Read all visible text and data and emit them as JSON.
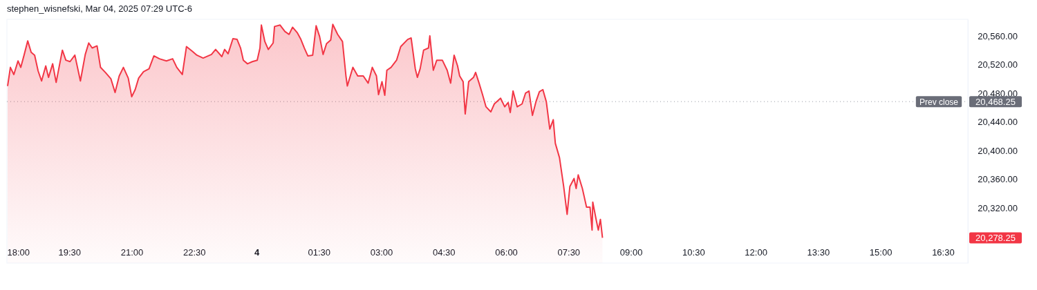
{
  "chart_data": {
    "type": "area",
    "title": "stephen_wisnefski, Mar 04, 2025 07:29 UTC-6",
    "x": [
      "2025-03-03T18:01",
      "2025-03-03T18:05",
      "2025-03-03T18:10",
      "2025-03-03T18:16",
      "2025-03-03T18:20",
      "2025-03-03T18:25",
      "2025-03-03T18:30",
      "2025-03-03T18:35",
      "2025-03-03T18:40",
      "2025-03-03T18:45",
      "2025-03-03T18:50",
      "2025-03-03T18:56",
      "2025-03-03T19:00",
      "2025-03-03T19:06",
      "2025-03-03T19:11",
      "2025-03-03T19:20",
      "2025-03-03T19:25",
      "2025-03-03T19:31",
      "2025-03-03T19:38",
      "2025-03-03T19:46",
      "2025-03-03T19:53",
      "2025-03-03T19:58",
      "2025-03-03T20:03",
      "2025-03-03T20:10",
      "2025-03-03T20:15",
      "2025-03-03T20:22",
      "2025-03-03T20:30",
      "2025-03-03T20:36",
      "2025-03-03T20:42",
      "2025-03-03T20:48",
      "2025-03-03T20:55",
      "2025-03-03T21:00",
      "2025-03-03T21:05",
      "2025-03-03T21:10",
      "2025-03-03T21:17",
      "2025-03-03T21:25",
      "2025-03-03T21:32",
      "2025-03-03T21:40",
      "2025-03-03T21:50",
      "2025-03-03T21:59",
      "2025-03-03T22:05",
      "2025-03-03T22:13",
      "2025-03-03T22:19",
      "2025-03-03T22:28",
      "2025-03-03T22:34",
      "2025-03-03T22:43",
      "2025-03-03T22:55",
      "2025-03-03T23:01",
      "2025-03-03T23:10",
      "2025-03-03T23:14",
      "2025-03-03T23:19",
      "2025-03-03T23:26",
      "2025-03-03T23:32",
      "2025-03-03T23:37",
      "2025-03-03T23:41",
      "2025-03-03T23:47",
      "2025-03-03T23:54",
      "2025-03-04T00:01",
      "2025-03-04T00:05",
      "2025-03-04T00:07",
      "2025-03-04T00:12",
      "2025-03-04T00:17",
      "2025-03-04T00:24",
      "2025-03-04T00:26",
      "2025-03-04T00:34",
      "2025-03-04T00:41",
      "2025-03-04T00:47",
      "2025-03-04T00:52",
      "2025-03-04T00:59",
      "2025-03-04T01:04",
      "2025-03-04T01:09",
      "2025-03-04T01:14",
      "2025-03-04T01:21",
      "2025-03-04T01:26",
      "2025-03-04T01:31",
      "2025-03-04T01:36",
      "2025-03-04T01:41",
      "2025-03-04T01:47",
      "2025-03-04T01:50",
      "2025-03-04T01:57",
      "2025-03-04T02:04",
      "2025-03-04T02:09",
      "2025-03-04T02:11",
      "2025-03-04T02:19",
      "2025-03-04T02:26",
      "2025-03-04T02:34",
      "2025-03-04T02:41",
      "2025-03-04T02:47",
      "2025-03-04T02:53",
      "2025-03-04T02:56",
      "2025-03-04T03:01",
      "2025-03-04T03:05",
      "2025-03-04T03:08",
      "2025-03-04T03:14",
      "2025-03-04T03:22",
      "2025-03-04T03:28",
      "2025-03-04T03:38",
      "2025-03-04T03:43",
      "2025-03-04T03:49",
      "2025-03-04T03:52",
      "2025-03-04T03:56",
      "2025-03-04T04:01",
      "2025-03-04T04:08",
      "2025-03-04T04:10",
      "2025-03-04T04:15",
      "2025-03-04T04:20",
      "2025-03-04T04:28",
      "2025-03-04T04:35",
      "2025-03-04T04:40",
      "2025-03-04T04:45",
      "2025-03-04T04:50",
      "2025-03-04T04:53",
      "2025-03-04T04:58",
      "2025-03-04T05:01",
      "2025-03-04T05:06",
      "2025-03-04T05:13",
      "2025-03-04T05:16",
      "2025-03-04T05:21",
      "2025-03-04T05:26",
      "2025-03-04T05:31",
      "2025-03-04T05:38",
      "2025-03-04T05:43",
      "2025-03-04T05:52",
      "2025-03-04T05:58",
      "2025-03-04T06:03",
      "2025-03-04T06:06",
      "2025-03-04T06:10",
      "2025-03-04T06:16",
      "2025-03-04T06:23",
      "2025-03-04T06:28",
      "2025-03-04T06:33",
      "2025-03-04T06:38",
      "2025-03-04T06:43",
      "2025-03-04T06:48",
      "2025-03-04T06:53",
      "2025-03-04T06:58",
      "2025-03-04T07:03",
      "2025-03-04T07:08",
      "2025-03-04T07:11",
      "2025-03-04T07:17",
      "2025-03-04T07:23",
      "2025-03-04T07:28",
      "2025-03-04T07:32",
      "2025-03-04T07:38",
      "2025-03-04T07:41",
      "2025-03-04T07:44",
      "2025-03-04T07:50",
      "2025-03-04T07:56",
      "2025-03-04T08:01",
      "2025-03-04T08:04",
      "2025-03-04T08:05",
      "2025-03-04T08:10",
      "2025-03-04T08:13",
      "2025-03-04T08:16",
      "2025-03-04T08:19"
    ],
    "series": [
      {
        "color": "#f23645",
        "values": [
          20490,
          20516,
          20506,
          20525,
          20516,
          20534,
          20553,
          20537,
          20533,
          20511,
          20497,
          20518,
          20502,
          20521,
          20495,
          20540,
          20526,
          20524,
          20533,
          20497,
          20534,
          20550,
          20543,
          20546,
          20516,
          20509,
          20500,
          20481,
          20504,
          20516,
          20501,
          20475,
          20485,
          20501,
          20510,
          20514,
          20532,
          20528,
          20525,
          20528,
          20516,
          20506,
          20545,
          20538,
          20533,
          20529,
          20534,
          20541,
          20531,
          20541,
          20535,
          20556,
          20555,
          20543,
          20526,
          20521,
          20524,
          20526,
          20543,
          20575,
          20552,
          20541,
          20550,
          20573,
          20575,
          20566,
          20562,
          20572,
          20564,
          20555,
          20543,
          20532,
          20533,
          20574,
          20559,
          20534,
          20549,
          20554,
          20576,
          20562,
          20552,
          20504,
          20490,
          20516,
          20504,
          20504,
          20494,
          20516,
          20504,
          20478,
          20496,
          20477,
          20512,
          20516,
          20526,
          20545,
          20555,
          20557,
          20514,
          20502,
          20514,
          20540,
          20543,
          20560,
          20512,
          20526,
          20526,
          20512,
          20494,
          20533,
          20518,
          20504,
          20496,
          20451,
          20496,
          20502,
          20509,
          20494,
          20478,
          20461,
          20454,
          20465,
          20473,
          20461,
          20467,
          20453,
          20483,
          20461,
          20465,
          20480,
          20483,
          20449,
          20468,
          20482,
          20485,
          20468,
          20430,
          20443,
          20410,
          20390,
          20350,
          20311,
          20350,
          20361,
          20347,
          20366,
          20347,
          20321,
          20321,
          20289,
          20328,
          20303,
          20289,
          20304,
          20278.25
        ]
      }
    ],
    "xlim": [
      "2025-03-03T18:00",
      "2025-03-04T17:06"
    ],
    "ylim": [
      20243,
      20583
    ],
    "xticks": [
      {
        "value": "2025-03-03T18:00",
        "label": "18:00"
      },
      {
        "value": "2025-03-03T19:30",
        "label": "19:30"
      },
      {
        "value": "2025-03-03T21:00",
        "label": "21:00"
      },
      {
        "value": "2025-03-03T22:30",
        "label": "22:30"
      },
      {
        "value": "2025-03-04T00:00",
        "label": "4"
      },
      {
        "value": "2025-03-04T01:30",
        "label": "01:30"
      },
      {
        "value": "2025-03-04T03:00",
        "label": "03:00"
      },
      {
        "value": "2025-03-04T04:30",
        "label": "04:30"
      },
      {
        "value": "2025-03-04T06:00",
        "label": "06:00"
      },
      {
        "value": "2025-03-04T07:30",
        "label": "07:30"
      },
      {
        "value": "2025-03-04T09:00",
        "label": "09:00"
      },
      {
        "value": "2025-03-04T10:30",
        "label": "10:30"
      },
      {
        "value": "2025-03-04T12:00",
        "label": "12:00"
      },
      {
        "value": "2025-03-04T13:30",
        "label": "13:30"
      },
      {
        "value": "2025-03-04T15:00",
        "label": "15:00"
      },
      {
        "value": "2025-03-04T16:30",
        "label": "16:30"
      }
    ],
    "yticks": [
      {
        "value": 20320,
        "label": "20,320.00"
      },
      {
        "value": 20360,
        "label": "20,360.00"
      },
      {
        "value": 20400,
        "label": "20,400.00"
      },
      {
        "value": 20440,
        "label": "20,440.00"
      },
      {
        "value": 20480,
        "label": "20,480.00"
      },
      {
        "value": 20520,
        "label": "20,520.00"
      },
      {
        "value": 20560,
        "label": "20,560.00"
      }
    ],
    "ref_lines": [
      {
        "axis": "y",
        "value": 20468.25,
        "label": "Prev close",
        "color": "#9598a1",
        "line_style": "dotted"
      }
    ],
    "annotations": [
      "20,468.25",
      "20,278.25"
    ],
    "grid": false,
    "marker": "none",
    "line_style": "solid"
  }
}
